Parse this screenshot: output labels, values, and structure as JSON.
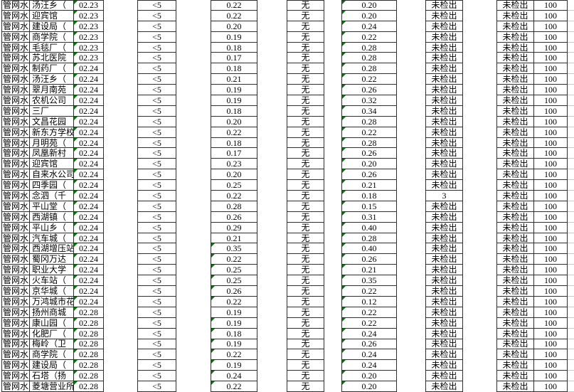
{
  "colors": {
    "error_flag_triangle": "#007c00",
    "cell_border": "#2f2f2f",
    "worksheet_gridline": "#c9c9c9",
    "text": "#000000",
    "background": "#ffffff"
  },
  "table": {
    "description_of_columns": "category | sampling location | date | limit value | value1 | none-marker | value2 | result1 | result2 | score",
    "constants": {
      "category": "管网水",
      "limit": "<5",
      "none_marker": "无",
      "result2": "未检出",
      "score": "100"
    },
    "flags": {
      "date_cells_have_error_triangle": true,
      "value2_cells_have_error_triangle": true,
      "value1_triangle_per_row_in_rows": true
    },
    "row_fields": [
      "location",
      "date",
      "value1",
      "value1_has_triangle",
      "value2",
      "result1"
    ],
    "rows": [
      [
        "汤汪乡（",
        "02.23",
        "0.22",
        0,
        "0.20",
        "未检出"
      ],
      [
        "迎宾馆",
        "02.23",
        "0.22",
        0,
        "0.20",
        "未检出"
      ],
      [
        "建设局（",
        "02.23",
        "0.20",
        0,
        "0.24",
        "未检出"
      ],
      [
        "商学院（",
        "02.23",
        "0.19",
        0,
        "0.22",
        "未检出"
      ],
      [
        "毛毯厂（",
        "02.23",
        "0.18",
        0,
        "0.28",
        "未检出"
      ],
      [
        "苏北医院",
        "02.23",
        "0.17",
        0,
        "0.28",
        "未检出"
      ],
      [
        "制药厂（",
        "02.24",
        "0.18",
        0,
        "0.28",
        "未检出"
      ],
      [
        "汤汪乡（",
        "02.24",
        "0.21",
        0,
        "0.22",
        "未检出"
      ],
      [
        "翠月南苑",
        "02.24",
        "0.19",
        0,
        "0.26",
        "未检出"
      ],
      [
        "农机公司",
        "02.24",
        "0.19",
        0,
        "0.32",
        "未检出"
      ],
      [
        "三厂",
        "02.24",
        "0.18",
        0,
        "0.34",
        "未检出"
      ],
      [
        "文昌花园",
        "02.24",
        "0.20",
        0,
        "0.28",
        "未检出"
      ],
      [
        "新东方学校",
        "02.24",
        "0.22",
        0,
        "0.22",
        "未检出"
      ],
      [
        "月明苑（",
        "02.24",
        "0.18",
        0,
        "0.28",
        "未检出"
      ],
      [
        "凤凰新村",
        "02.24",
        "0.17",
        0,
        "0.26",
        "未检出"
      ],
      [
        "迎宾馆",
        "02.24",
        "0.23",
        0,
        "0.20",
        "未检出"
      ],
      [
        "自来水公司",
        "02.24",
        "0.20",
        0,
        "0.26",
        "未检出"
      ],
      [
        "四季园（",
        "02.24",
        "0.25",
        0,
        "0.21",
        "未检出"
      ],
      [
        "念泗（千",
        "02.24",
        "0.22",
        0,
        "0.18",
        "3"
      ],
      [
        "平山堂（",
        "02.24",
        "0.28",
        0,
        "0.15",
        "未检出"
      ],
      [
        "西湖镇（",
        "02.24",
        "0.26",
        0,
        "0.31",
        "未检出"
      ],
      [
        "平山乡（",
        "02.24",
        "0.29",
        0,
        "0.40",
        "未检出"
      ],
      [
        "汽车城（",
        "02.24",
        "0.21",
        0,
        "0.28",
        "未检出"
      ],
      [
        "西湖增压站",
        "02.24",
        "0.35",
        1,
        "0.40",
        "未检出"
      ],
      [
        "蜀冈万达",
        "02.24",
        "0.22",
        1,
        "0.26",
        "未检出"
      ],
      [
        "职业大学",
        "02.24",
        "0.25",
        1,
        "0.21",
        "未检出"
      ],
      [
        "火车站（",
        "02.24",
        "0.25",
        1,
        "0.35",
        "未检出"
      ],
      [
        "京华城（",
        "02.24",
        "0.26",
        1,
        "0.22",
        "未检出"
      ],
      [
        "万鸿城市花园",
        "02.24",
        "0.22",
        1,
        "0.12",
        "未检出"
      ],
      [
        "扬州商城",
        "02.28",
        "0.19",
        0,
        "0.22",
        "未检出"
      ],
      [
        "康山园（",
        "02.28",
        "0.19",
        1,
        "0.22",
        "未检出"
      ],
      [
        "化肥厂（",
        "02.28",
        "0.18",
        1,
        "0.24",
        "未检出"
      ],
      [
        "梅岭（卫",
        "02.28",
        "0.19",
        1,
        "0.26",
        "未检出"
      ],
      [
        "商学院（",
        "02.28",
        "0.22",
        1,
        "0.24",
        "未检出"
      ],
      [
        "建设局（",
        "02.28",
        "0.19",
        1,
        "0.24",
        "未检出"
      ],
      [
        "石塔（扬",
        "02.28",
        "0.24",
        1,
        "0.20",
        "未检出"
      ],
      [
        "菱塘营业所",
        "02.28",
        "0.22",
        1,
        "0.20",
        "未检出"
      ]
    ]
  }
}
